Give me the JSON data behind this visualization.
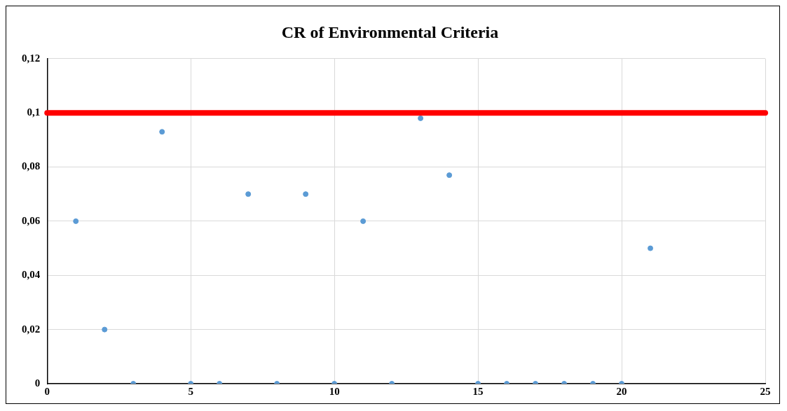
{
  "chart_data": {
    "type": "scatter",
    "title": "CR of Environmental Criteria",
    "x": [
      1,
      2,
      3,
      4,
      5,
      6,
      7,
      8,
      9,
      10,
      11,
      12,
      13,
      14,
      15,
      16,
      17,
      18,
      19,
      20,
      21
    ],
    "series": [
      {
        "color": "#5b9bd5",
        "values": [
          0.06,
          0.02,
          0,
          0.093,
          0,
          0,
          0.07,
          0,
          0.07,
          0,
          0.06,
          0,
          0.098,
          0.077,
          0,
          0,
          0,
          0,
          0,
          0,
          0.05
        ]
      }
    ],
    "xlim": [
      0,
      25
    ],
    "xticks": [
      0,
      5,
      10,
      15,
      20,
      25
    ],
    "ylim": [
      0,
      0.12
    ],
    "yticks": [
      {
        "value": 0,
        "label": "0"
      },
      {
        "value": 0.02,
        "label": "0,02"
      },
      {
        "value": 0.04,
        "label": "0,04"
      },
      {
        "value": 0.06,
        "label": "0,06"
      },
      {
        "value": 0.08,
        "label": "0,08"
      },
      {
        "value": 0.1,
        "label": "0,1"
      },
      {
        "value": 0.12,
        "label": "0,12"
      }
    ],
    "ref_lines": [
      {
        "axis": "y",
        "value": 0.1,
        "color": "#ff0000",
        "line_style": "solid"
      }
    ],
    "grid": true,
    "legend": false,
    "marker": "circle"
  }
}
